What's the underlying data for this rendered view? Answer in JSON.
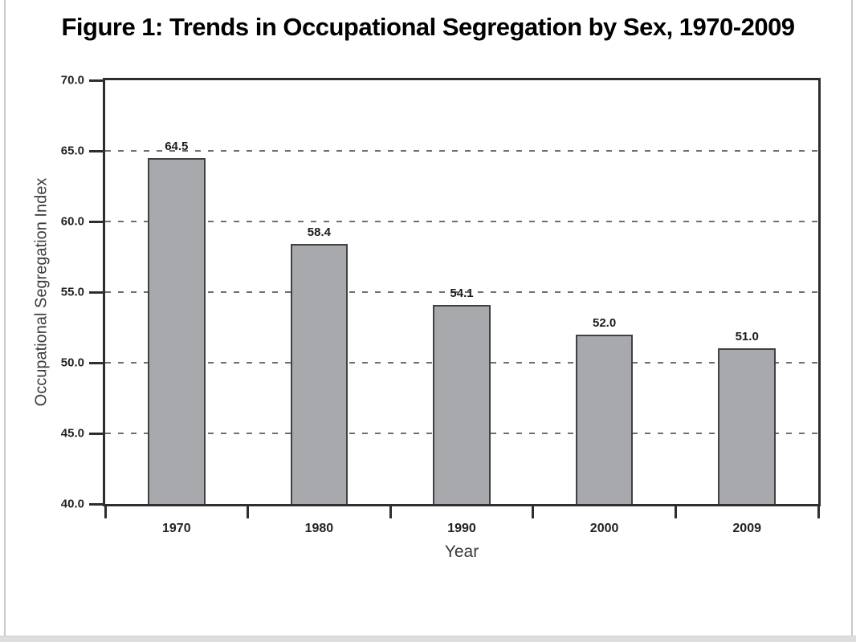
{
  "page": {
    "title": "Figure 1: Trends in Occupational Segregation by Sex, 1970-2009"
  },
  "chart_data": {
    "type": "bar",
    "title": "Figure 1: Trends in Occupational Segregation by Sex, 1970-2009",
    "categories": [
      "1970",
      "1980",
      "1990",
      "2000",
      "2009"
    ],
    "values": [
      64.5,
      58.4,
      54.1,
      52.0,
      51.0
    ],
    "value_labels": [
      "64.5",
      "58.4",
      "54.1",
      "52.0",
      "51.0"
    ],
    "xlabel": "Year",
    "ylabel": "Occupational Segregation Index",
    "ylim": [
      40,
      70
    ],
    "ytick_step": 5,
    "ytick_labels": [
      "70.0",
      "65.0",
      "60.0",
      "55.0",
      "50.0",
      "45.0",
      "40.0"
    ],
    "gridlines_at": [
      65,
      60,
      55,
      50,
      45
    ],
    "grid_style": "dashed-horizontal",
    "legend": "none",
    "colors": {
      "bar_fill": "#a8a9ac",
      "bar_border": "#414144",
      "frame": "#2e2e30",
      "gridline": "#6f6f71",
      "tick_label": "#232323",
      "axis_title": "#3b3b3d",
      "title": "#000000"
    }
  }
}
